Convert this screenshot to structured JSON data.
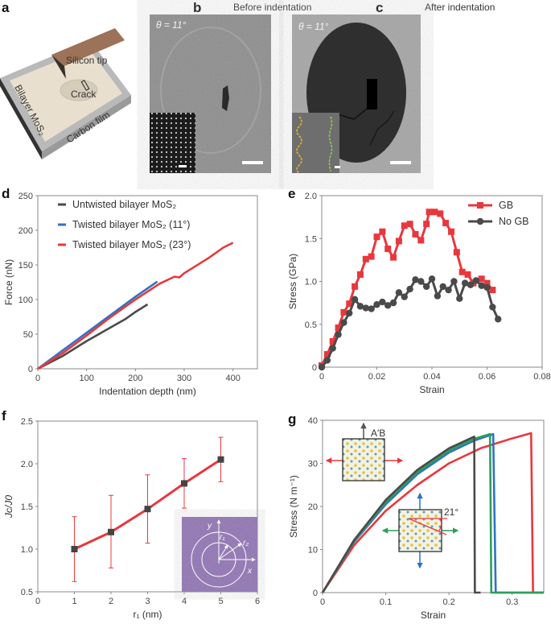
{
  "panels": {
    "a": {
      "letter": "a",
      "tip_label": "Silicon tip",
      "crack_label": "Crack",
      "layer_label": "Bilayer MoS₂",
      "film_label": "Carbon film"
    },
    "b": {
      "letter": "b",
      "title": "Before indentation",
      "angle": "θ = 11°"
    },
    "c": {
      "letter": "c",
      "title": "After indentation",
      "angle": "θ = 11°"
    },
    "d": {
      "letter": "d"
    },
    "e": {
      "letter": "e"
    },
    "f": {
      "letter": "f",
      "inset_labels": [
        "y",
        "x",
        "r₁",
        "r₂"
      ]
    },
    "g": {
      "letter": "g",
      "inset_labels": [
        "A′B",
        "21°"
      ]
    }
  },
  "colors": {
    "black": "#4a4a4a",
    "blue": "#2f72c4",
    "red": "#e8383d",
    "green": "#2e9e5b",
    "tip": "#9c7258",
    "film": "#b9b9b9",
    "mos2": "#e8dfcf"
  },
  "chart_data": [
    {
      "id": "d",
      "type": "line",
      "xlabel": "Indentation depth (nm)",
      "ylabel": "Force (nN)",
      "xlim": [
        0,
        450
      ],
      "ylim": [
        0,
        250
      ],
      "xticks": [
        0,
        100,
        200,
        300,
        400
      ],
      "yticks": [
        0,
        50,
        100,
        150,
        200,
        250
      ],
      "legend": "top-left",
      "series": [
        {
          "name": "Untwisted bilayer MoS₂",
          "color": "#4a4a4a",
          "points": [
            [
              0,
              0
            ],
            [
              50,
              18
            ],
            [
              100,
              40
            ],
            [
              150,
              60
            ],
            [
              180,
              72
            ],
            [
              200,
              82
            ],
            [
              225,
              93
            ]
          ]
        },
        {
          "name": "Twisted bilayer MoS₂ (11°)",
          "color": "#2f72c4",
          "points": [
            [
              0,
              0
            ],
            [
              100,
              52
            ],
            [
              200,
              104
            ],
            [
              245,
              126
            ]
          ]
        },
        {
          "name": "Twisted bilayer MoS₂ (23°)",
          "color": "#e8383d",
          "points": [
            [
              0,
              0
            ],
            [
              50,
              22
            ],
            [
              100,
              48
            ],
            [
              150,
              75
            ],
            [
              200,
              100
            ],
            [
              250,
              123
            ],
            [
              280,
              133
            ],
            [
              290,
              132
            ],
            [
              300,
              138
            ],
            [
              350,
              160
            ],
            [
              380,
              175
            ],
            [
              400,
              182
            ]
          ]
        }
      ]
    },
    {
      "id": "e",
      "type": "line",
      "xlabel": "Strain",
      "ylabel": "Stress (GPa)",
      "xlim": [
        0,
        0.08
      ],
      "ylim": [
        0,
        2.0
      ],
      "xticks": [
        0,
        0.02,
        0.04,
        0.06,
        0.08
      ],
      "xtick_labels": [
        "0",
        "0.02",
        "0.04",
        "0.06",
        "0.08"
      ],
      "yticks": [
        0,
        0.5,
        1.0,
        1.5,
        2.0
      ],
      "ytick_labels": [
        "0",
        "0.5",
        "1.0",
        "1.5",
        "2.0"
      ],
      "legend": "top-right",
      "series": [
        {
          "name": "GB",
          "color": "#e8383d",
          "marker": "square",
          "points": [
            [
              0,
              0.02
            ],
            [
              0.002,
              0.15
            ],
            [
              0.004,
              0.3
            ],
            [
              0.006,
              0.46
            ],
            [
              0.008,
              0.64
            ],
            [
              0.01,
              0.74
            ],
            [
              0.012,
              0.94
            ],
            [
              0.014,
              1.08
            ],
            [
              0.016,
              1.26
            ],
            [
              0.018,
              1.29
            ],
            [
              0.02,
              1.52
            ],
            [
              0.022,
              1.58
            ],
            [
              0.024,
              1.38
            ],
            [
              0.026,
              1.28
            ],
            [
              0.028,
              1.47
            ],
            [
              0.03,
              1.65
            ],
            [
              0.032,
              1.67
            ],
            [
              0.034,
              1.55
            ],
            [
              0.036,
              1.48
            ],
            [
              0.038,
              1.67
            ],
            [
              0.039,
              1.81
            ],
            [
              0.041,
              1.81
            ],
            [
              0.043,
              1.79
            ],
            [
              0.045,
              1.68
            ],
            [
              0.047,
              1.58
            ],
            [
              0.049,
              1.34
            ],
            [
              0.051,
              1.11
            ],
            [
              0.053,
              1.08
            ],
            [
              0.055,
              0.98
            ],
            [
              0.058,
              1.03
            ],
            [
              0.06,
              0.98
            ],
            [
              0.062,
              0.9
            ]
          ]
        },
        {
          "name": "No GB",
          "color": "#4a4a4a",
          "marker": "circle",
          "points": [
            [
              0,
              0
            ],
            [
              0.002,
              0.08
            ],
            [
              0.004,
              0.22
            ],
            [
              0.006,
              0.38
            ],
            [
              0.008,
              0.52
            ],
            [
              0.01,
              0.63
            ],
            [
              0.012,
              0.79
            ],
            [
              0.014,
              0.71
            ],
            [
              0.016,
              0.69
            ],
            [
              0.018,
              0.68
            ],
            [
              0.02,
              0.73
            ],
            [
              0.022,
              0.76
            ],
            [
              0.024,
              0.72
            ],
            [
              0.026,
              0.75
            ],
            [
              0.028,
              0.87
            ],
            [
              0.03,
              0.82
            ],
            [
              0.032,
              0.91
            ],
            [
              0.034,
              1.02
            ],
            [
              0.036,
              1.0
            ],
            [
              0.038,
              0.94
            ],
            [
              0.04,
              1.03
            ],
            [
              0.042,
              0.83
            ],
            [
              0.044,
              0.94
            ],
            [
              0.046,
              0.9
            ],
            [
              0.048,
              1.0
            ],
            [
              0.05,
              0.8
            ],
            [
              0.052,
              0.98
            ],
            [
              0.054,
              0.96
            ],
            [
              0.056,
              1.01
            ],
            [
              0.058,
              0.95
            ],
            [
              0.06,
              0.93
            ],
            [
              0.062,
              0.7
            ],
            [
              0.064,
              0.56
            ]
          ]
        }
      ]
    },
    {
      "id": "f",
      "type": "line",
      "xlabel": "r₁ (nm)",
      "ylabel": "Jc/J0",
      "xlim": [
        0,
        6
      ],
      "ylim": [
        0.5,
        2.5
      ],
      "xticks": [
        0,
        1,
        2,
        3,
        4,
        5,
        6
      ],
      "yticks": [
        0.5,
        1.0,
        1.5,
        2.0,
        2.5
      ],
      "ytick_labels": [
        "0.5",
        "1.0",
        "1.5",
        "2.0",
        "2.5"
      ],
      "series": [
        {
          "color": "#e8383d",
          "marker": "square",
          "marker_color": "#444444",
          "points": [
            [
              1,
              1.0
            ],
            [
              2,
              1.2
            ],
            [
              3,
              1.47
            ],
            [
              4,
              1.77
            ],
            [
              5,
              2.05
            ]
          ],
          "error_bars": [
            [
              0.62,
              1.38
            ],
            [
              0.78,
              1.63
            ],
            [
              1.07,
              1.87
            ],
            [
              1.48,
              2.06
            ],
            [
              1.79,
              2.31
            ]
          ]
        }
      ]
    },
    {
      "id": "g",
      "type": "line",
      "xlabel": "Strain",
      "ylabel": "Stress (N m⁻¹)",
      "xlim": [
        0,
        0.35
      ],
      "ylim": [
        0,
        40
      ],
      "xticks": [
        0,
        0.1,
        0.2,
        0.3
      ],
      "xtick_labels": [
        "0",
        "0.1",
        "0.2",
        "0.3"
      ],
      "yticks": [
        0,
        10,
        20,
        30,
        40
      ],
      "series": [
        {
          "color": "#e8383d",
          "points": [
            [
              0,
              0
            ],
            [
              0.05,
              11
            ],
            [
              0.1,
              19
            ],
            [
              0.15,
              25
            ],
            [
              0.2,
              30
            ],
            [
              0.25,
              33.5
            ],
            [
              0.3,
              35.8
            ],
            [
              0.33,
              37
            ],
            [
              0.333,
              0
            ],
            [
              0.35,
              0
            ]
          ]
        },
        {
          "color": "#2f72c4",
          "points": [
            [
              0,
              0
            ],
            [
              0.05,
              11.8
            ],
            [
              0.1,
              20.5
            ],
            [
              0.15,
              27.5
            ],
            [
              0.2,
              32.5
            ],
            [
              0.24,
              35.3
            ],
            [
              0.27,
              36.8
            ],
            [
              0.274,
              0
            ],
            [
              0.35,
              0
            ]
          ]
        },
        {
          "color": "#2e9e5b",
          "points": [
            [
              0,
              0
            ],
            [
              0.05,
              12
            ],
            [
              0.1,
              21
            ],
            [
              0.15,
              28
            ],
            [
              0.2,
              33
            ],
            [
              0.24,
              35.7
            ],
            [
              0.265,
              36.8
            ],
            [
              0.267,
              0
            ],
            [
              0.35,
              0
            ]
          ]
        },
        {
          "color": "#4a4a4a",
          "points": [
            [
              0,
              0
            ],
            [
              0.05,
              12.2
            ],
            [
              0.1,
              21.5
            ],
            [
              0.15,
              28.5
            ],
            [
              0.2,
              33.5
            ],
            [
              0.24,
              36.2
            ],
            [
              0.241,
              0
            ],
            [
              0.25,
              0
            ]
          ]
        }
      ]
    }
  ]
}
